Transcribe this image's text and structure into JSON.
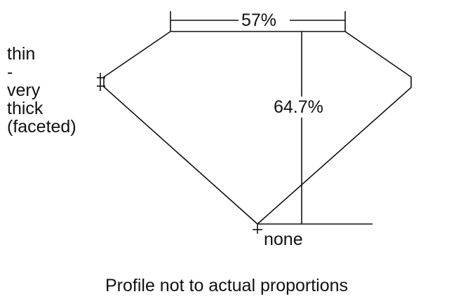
{
  "table_label": "57%",
  "depth_label": "64.7%",
  "culet_label": "none",
  "girdle_label_lines": [
    "thin",
    "-",
    "very",
    "thick",
    "(faceted)"
  ],
  "caption": "Profile not to actual proportions"
}
